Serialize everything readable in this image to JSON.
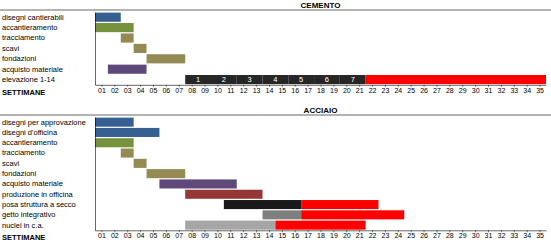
{
  "chart_data": [
    {
      "type": "gantt",
      "title": "CEMENTO",
      "x_label": "SETTIMANE",
      "categories": [
        "disegni cantierabili",
        "accantieramento",
        "tracciamento",
        "scavi",
        "fondazioni",
        "acquisto materiale",
        "elevazione 1-14"
      ],
      "segments": [
        [
          {
            "start": 0.5,
            "end": 2.5,
            "color": "#376092"
          }
        ],
        [
          {
            "start": 0.5,
            "end": 3.5,
            "color": "#76923c"
          }
        ],
        [
          {
            "start": 2.5,
            "end": 3.5,
            "color": "#948a54"
          }
        ],
        [
          {
            "start": 3.5,
            "end": 4.5,
            "color": "#948a54"
          }
        ],
        [
          {
            "start": 4.5,
            "end": 7.5,
            "color": "#948a54"
          }
        ],
        [
          {
            "start": 1.5,
            "end": 4.5,
            "color": "#5f497a"
          }
        ],
        [
          {
            "start": 7.5,
            "end": 9.5,
            "color": "#262626",
            "label": "1"
          },
          {
            "start": 9.5,
            "end": 11.5,
            "color": "#262626",
            "label": "2"
          },
          {
            "start": 11.5,
            "end": 13.5,
            "color": "#262626",
            "label": "3"
          },
          {
            "start": 13.5,
            "end": 15.5,
            "color": "#262626",
            "label": "4"
          },
          {
            "start": 15.5,
            "end": 17.5,
            "color": "#262626",
            "label": "5"
          },
          {
            "start": 17.5,
            "end": 19.5,
            "color": "#262626",
            "label": "6"
          },
          {
            "start": 19.5,
            "end": 21.5,
            "color": "#262626",
            "label": "7"
          },
          {
            "start": 21.5,
            "end": 35.5,
            "color": "#ff0000"
          }
        ]
      ],
      "xlim": [
        0.5,
        35.5
      ],
      "xticks": [
        {
          "value": 1,
          "label": "01"
        },
        {
          "value": 2,
          "label": "02"
        },
        {
          "value": 3,
          "label": "03"
        },
        {
          "value": 4,
          "label": "04"
        },
        {
          "value": 5,
          "label": "05"
        },
        {
          "value": 6,
          "label": "06"
        },
        {
          "value": 7,
          "label": "07"
        },
        {
          "value": 8,
          "label": "08"
        },
        {
          "value": 9,
          "label": "09"
        },
        10,
        11,
        12,
        13,
        14,
        15,
        16,
        17,
        18,
        19,
        20,
        21,
        22,
        23,
        24,
        25,
        26,
        27,
        28,
        29,
        30,
        31,
        32,
        33,
        34,
        35
      ]
    },
    {
      "type": "gantt",
      "title": "ACCIAIO",
      "x_label": "SETTIMANE",
      "categories": [
        "disegni per approvazione",
        "disegni d'officina",
        "accantieramento",
        "tracciamento",
        "scavi",
        "fondazioni",
        "acquisto materiale",
        "produzione in officina",
        "posa struttura a secco",
        "getto integrativo",
        "nuclei in c.a."
      ],
      "segments": [
        [
          {
            "start": 0.5,
            "end": 3.5,
            "color": "#376092"
          }
        ],
        [
          {
            "start": 0.5,
            "end": 5.5,
            "color": "#376092"
          }
        ],
        [
          {
            "start": 0.5,
            "end": 3.5,
            "color": "#76923c"
          }
        ],
        [
          {
            "start": 2.5,
            "end": 3.5,
            "color": "#948a54"
          }
        ],
        [
          {
            "start": 3.5,
            "end": 4.5,
            "color": "#948a54"
          }
        ],
        [
          {
            "start": 4.5,
            "end": 7.5,
            "color": "#948a54"
          }
        ],
        [
          {
            "start": 5.5,
            "end": 11.5,
            "color": "#5f497a"
          }
        ],
        [
          {
            "start": 7.5,
            "end": 13.5,
            "color": "#953735"
          }
        ],
        [
          {
            "start": 10.5,
            "end": 16.5,
            "color": "#1a1a1a"
          },
          {
            "start": 16.5,
            "end": 22.5,
            "color": "#ff0000"
          }
        ],
        [
          {
            "start": 13.5,
            "end": 16.5,
            "color": "#7f7f7f"
          },
          {
            "start": 16.5,
            "end": 24.5,
            "color": "#ff0000"
          }
        ],
        [
          {
            "start": 7.5,
            "end": 14.5,
            "color": "#a6a6a6"
          },
          {
            "start": 14.5,
            "end": 21.5,
            "color": "#ff0000"
          }
        ]
      ],
      "xlim": [
        0.5,
        35.5
      ],
      "xticks": [
        {
          "value": 1,
          "label": "01"
        },
        {
          "value": 2,
          "label": "02"
        },
        {
          "value": 3,
          "label": "03"
        },
        {
          "value": 4,
          "label": "04"
        },
        {
          "value": 5,
          "label": "05"
        },
        {
          "value": 6,
          "label": "06"
        },
        {
          "value": 7,
          "label": "07"
        },
        {
          "value": 8,
          "label": "08"
        },
        {
          "value": 9,
          "label": "09"
        },
        10,
        11,
        12,
        13,
        14,
        15,
        16,
        17,
        18,
        19,
        20,
        21,
        22,
        23,
        24,
        25,
        26,
        27,
        28,
        29,
        30,
        31,
        32,
        33,
        34,
        35
      ]
    }
  ]
}
